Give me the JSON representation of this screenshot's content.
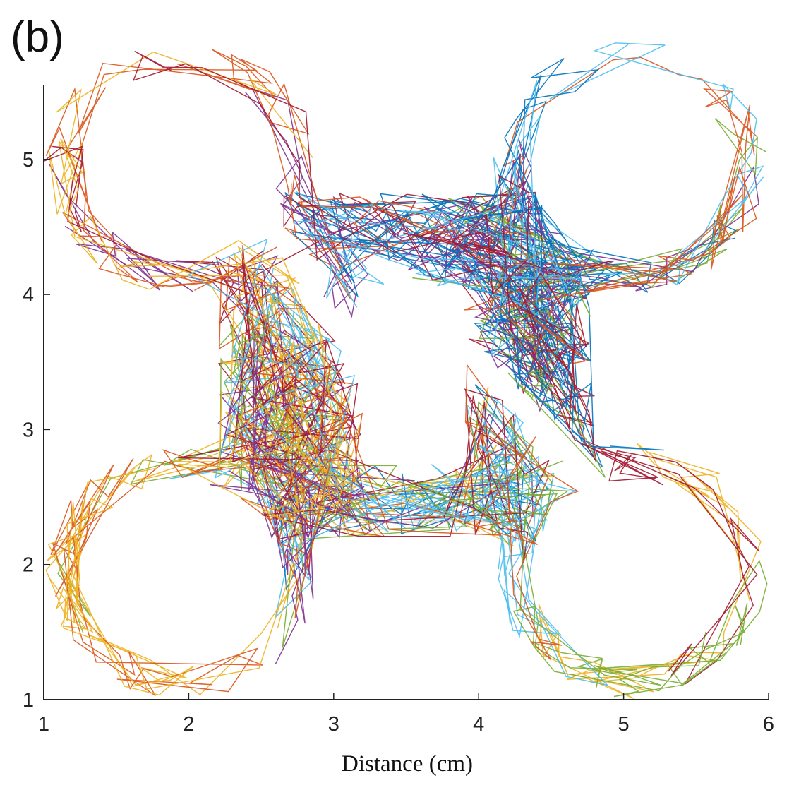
{
  "panel_label": "(b)",
  "chart_data": {
    "type": "line",
    "title": "",
    "panel_label": "(b)",
    "xlabel": "Distance (cm)",
    "ylabel": "",
    "xlim": [
      1,
      6
    ],
    "ylim": [
      1,
      5.6
    ],
    "xticks": [
      1,
      2,
      3,
      4,
      5,
      6
    ],
    "yticks": [
      1,
      2,
      3,
      4,
      5
    ],
    "xtick_labels": [
      "1",
      "2",
      "3",
      "4",
      "5",
      "6"
    ],
    "ytick_labels": [
      "1",
      "2",
      "3",
      "4",
      "5"
    ],
    "grid": false,
    "legend": "none",
    "colors": [
      "#0072bd",
      "#d95319",
      "#edb120",
      "#7e2f8e",
      "#77ac30",
      "#4dbeee",
      "#a2142f"
    ],
    "domain": {
      "description": "Trajectories of many random walkers bouncing inside a four-ring shaped chamber",
      "rings": [
        {
          "center": [
            1.95,
            4.95
          ],
          "inner_radius": 0.67,
          "outer_radius": 0.95
        },
        {
          "center": [
            5.05,
            4.95
          ],
          "inner_radius": 0.67,
          "outer_radius": 0.95
        },
        {
          "center": [
            1.95,
            1.95
          ],
          "inner_radius": 0.67,
          "outer_radius": 0.95
        },
        {
          "center": [
            5.05,
            1.95
          ],
          "inner_radius": 0.67,
          "outer_radius": 0.95
        }
      ],
      "channels": [
        {
          "name": "top-bridge",
          "x": [
            2.5,
            4.5
          ],
          "y": [
            4.05,
            4.75
          ]
        },
        {
          "name": "bottom-bridge",
          "x": [
            2.5,
            4.5
          ],
          "y": [
            2.2,
            2.75
          ]
        },
        {
          "name": "left-bridge",
          "x": [
            2.2,
            3.2
          ],
          "y": [
            2.45,
            4.4
          ]
        },
        {
          "name": "right-bridge",
          "x": [
            3.9,
            4.8
          ],
          "y": [
            2.55,
            4.45
          ]
        }
      ],
      "holes": [
        {
          "name": "left-slot",
          "polygon": [
            [
              2.48,
              4.62
            ],
            [
              2.6,
              4.55
            ],
            [
              3.7,
              2.66
            ],
            [
              3.58,
              2.62
            ]
          ]
        },
        {
          "name": "right-slot",
          "polygon": [
            [
              3.2,
              4.28
            ],
            [
              3.4,
              4.25
            ],
            [
              4.95,
              2.55
            ],
            [
              4.75,
              2.58
            ]
          ]
        }
      ]
    },
    "series": [
      {
        "name": "trajectories-blue",
        "color": "#0072bd",
        "segments": 260
      },
      {
        "name": "trajectories-orange",
        "color": "#d95319",
        "segments": 260
      },
      {
        "name": "trajectories-yellow",
        "color": "#edb120",
        "segments": 260
      },
      {
        "name": "trajectories-purple",
        "color": "#7e2f8e",
        "segments": 260
      },
      {
        "name": "trajectories-green",
        "color": "#77ac30",
        "segments": 260
      },
      {
        "name": "trajectories-cyan",
        "color": "#4dbeee",
        "segments": 260
      },
      {
        "name": "trajectories-red",
        "color": "#a2142f",
        "segments": 260
      }
    ]
  }
}
